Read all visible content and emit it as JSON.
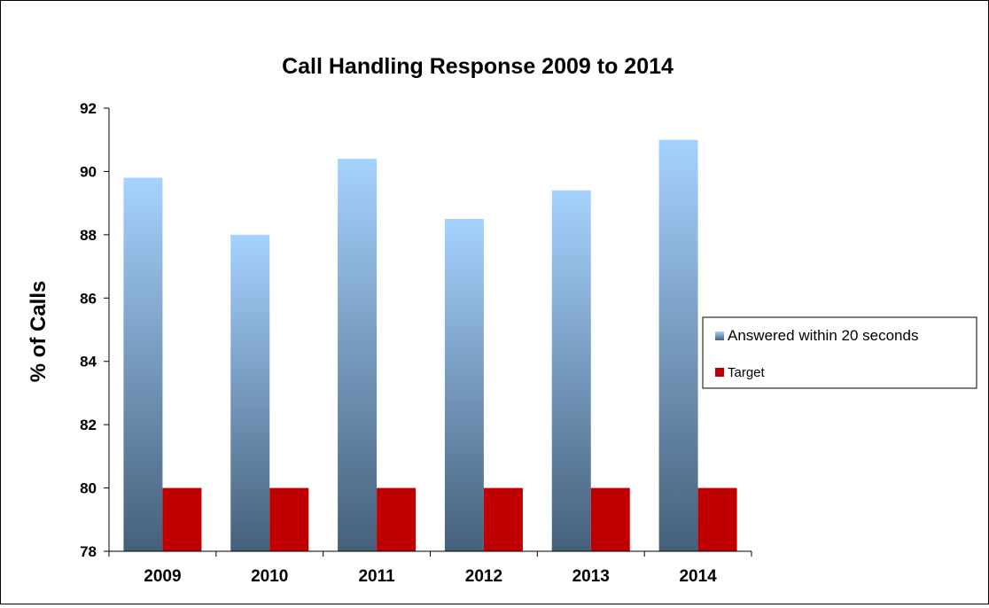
{
  "chart_data": {
    "type": "bar",
    "title": "Call Handling Response 2009 to 2014",
    "xlabel": "",
    "ylabel": "% of Calls",
    "categories": [
      "2009",
      "2010",
      "2011",
      "2012",
      "2013",
      "2014"
    ],
    "series": [
      {
        "name": "Answered within 20 seconds",
        "values": [
          89.8,
          88.0,
          90.4,
          88.5,
          89.4,
          91.0
        ]
      },
      {
        "name": "Target",
        "values": [
          80,
          80,
          80,
          80,
          80,
          80
        ]
      }
    ],
    "ylim": [
      78,
      92
    ],
    "yticks": [
      78,
      80,
      82,
      84,
      86,
      88,
      90,
      92
    ],
    "grid": false,
    "legend_position": "right",
    "colors": {
      "answered_top": "#a6d2ff",
      "answered_bottom": "#45607a",
      "target": "#c00000",
      "axis": "#000000"
    }
  }
}
